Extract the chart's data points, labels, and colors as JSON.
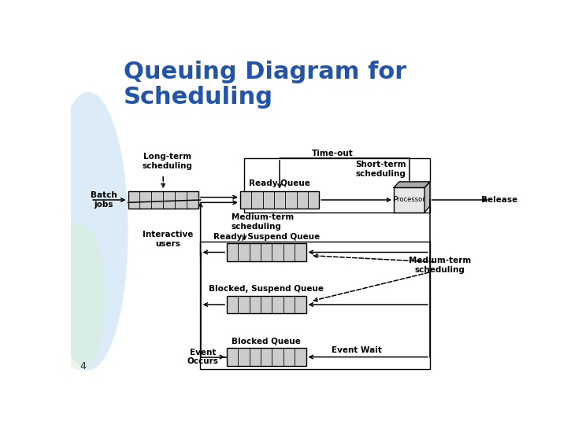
{
  "title": "Queuing Diagram for\nScheduling",
  "title_color": "#2255aa",
  "title_fontsize": 22,
  "bg_color": "#ffffff",
  "slide_number": "4",
  "queue_fill": "#cccccc",
  "queue_edge": "#000000",
  "arrow_color": "#000000",
  "labels": {
    "batch_jobs": "Batch\njobs",
    "ready_queue": "Ready Queue",
    "short_term": "Short-term\nscheduling",
    "processor": "Processor",
    "release": "Release",
    "long_term": "Long-term\nscheduling",
    "time_out": "Time-out",
    "medium_term1": "Medium-term\nscheduling",
    "interactive": "Interactive\nusers",
    "ready_suspend": "Ready, Suspend Queue",
    "medium_term2": "Medium-term\nscheduling",
    "blocked_suspend": "Blocked, Suspend Queue",
    "blocked_queue": "Blocked Queue",
    "event_occurs": "Event\nOccurs",
    "event_wait": "Event Wait"
  }
}
